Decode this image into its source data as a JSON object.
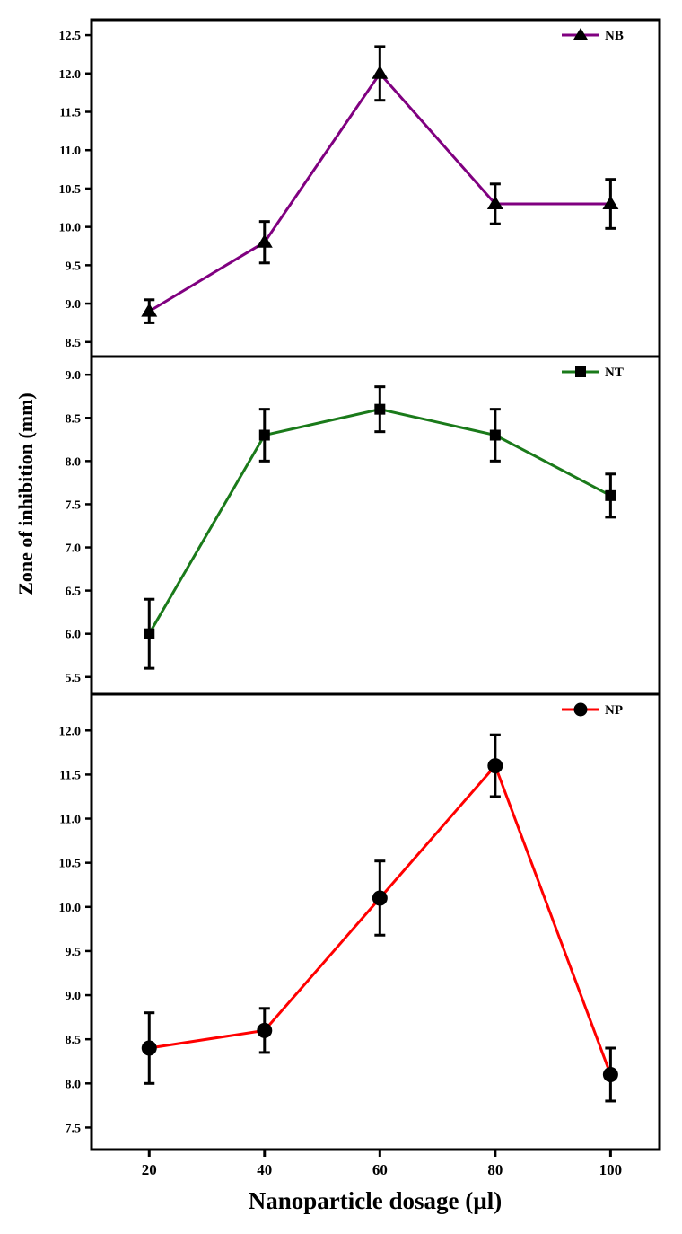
{
  "chart_data": {
    "type": "line",
    "shared_x": {
      "xlabel": "Nanoparticle dosage (µl)",
      "x": [
        20,
        40,
        60,
        80,
        100
      ],
      "tick_labels": [
        "20",
        "40",
        "60",
        "80",
        "100"
      ],
      "xlim": [
        10,
        108.5
      ]
    },
    "ylabel": "Zone of inhibition (mm)",
    "grid": false,
    "panels": [
      {
        "series": [
          {
            "name": "NB",
            "color": "#800080",
            "marker": "triangle",
            "values": [
              8.9,
              9.8,
              12.0,
              10.3,
              10.3
            ],
            "errors": [
              0.15,
              0.27,
              0.35,
              0.26,
              0.32
            ]
          }
        ],
        "yticks": [
          "8.5",
          "9.0",
          "9.5",
          "10.0",
          "10.5",
          "11.0",
          "11.5",
          "12.0",
          "12.5"
        ],
        "ylim": [
          8.31,
          12.7
        ],
        "legend": "top-right"
      },
      {
        "series": [
          {
            "name": "NT",
            "color": "#1a7a1a",
            "marker": "square",
            "values": [
              6.0,
              8.3,
              8.6,
              8.3,
              7.6
            ],
            "errors": [
              0.4,
              0.3,
              0.26,
              0.3,
              0.25
            ]
          }
        ],
        "yticks": [
          "5.5",
          "6.0",
          "6.5",
          "7.0",
          "7.5",
          "8.0",
          "8.5",
          "9.0"
        ],
        "ylim": [
          5.3,
          9.21
        ],
        "legend": "top-right"
      },
      {
        "series": [
          {
            "name": "NP",
            "color": "#ff0000",
            "marker": "circle",
            "values": [
              8.4,
              8.6,
              10.1,
              11.6,
              8.1
            ],
            "errors": [
              0.4,
              0.25,
              0.42,
              0.35,
              0.3
            ]
          }
        ],
        "yticks": [
          "7.5",
          "8.0",
          "8.5",
          "9.0",
          "9.5",
          "10.0",
          "10.5",
          "11.0",
          "11.5",
          "12.0"
        ],
        "ylim": [
          7.25,
          12.41
        ],
        "legend": "top-right"
      }
    ]
  }
}
